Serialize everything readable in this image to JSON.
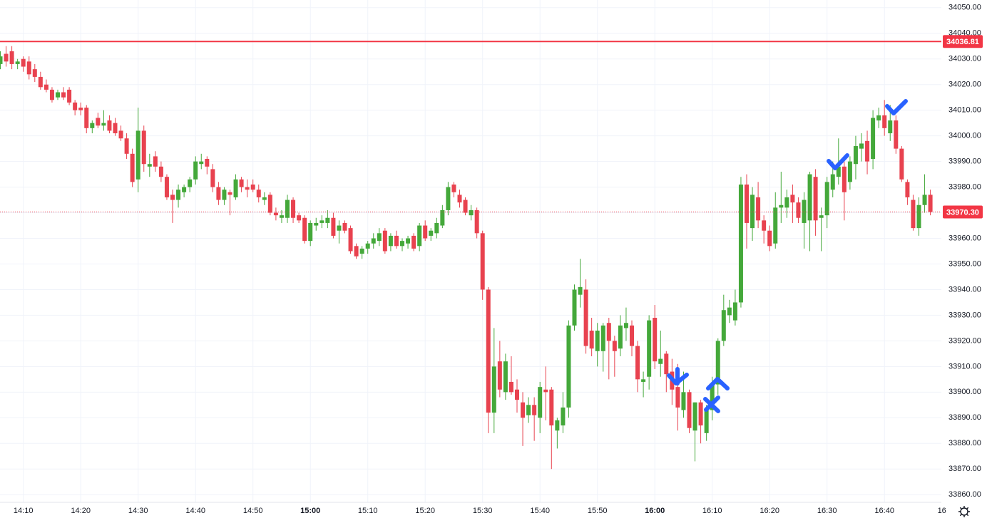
{
  "chart_data": {
    "type": "candlestick",
    "up_color": "#44a83a",
    "down_color": "#e8424f",
    "grid": true,
    "x": [
      "14:06",
      "14:07",
      "14:08",
      "14:09",
      "14:10",
      "14:11",
      "14:12",
      "14:13",
      "14:14",
      "14:15",
      "14:16",
      "14:17",
      "14:18",
      "14:19",
      "14:20",
      "14:21",
      "14:22",
      "14:23",
      "14:24",
      "14:25",
      "14:26",
      "14:27",
      "14:28",
      "14:29",
      "14:30",
      "14:31",
      "14:32",
      "14:33",
      "14:34",
      "14:35",
      "14:36",
      "14:37",
      "14:38",
      "14:39",
      "14:40",
      "14:41",
      "14:42",
      "14:43",
      "14:44",
      "14:45",
      "14:46",
      "14:47",
      "14:48",
      "14:49",
      "14:50",
      "14:51",
      "14:52",
      "14:53",
      "14:54",
      "14:55",
      "14:56",
      "14:57",
      "14:58",
      "14:59",
      "15:00",
      "15:01",
      "15:02",
      "15:03",
      "15:04",
      "15:05",
      "15:06",
      "15:07",
      "15:08",
      "15:09",
      "15:10",
      "15:11",
      "15:12",
      "15:13",
      "15:14",
      "15:15",
      "15:16",
      "15:17",
      "15:18",
      "15:19",
      "15:20",
      "15:21",
      "15:22",
      "15:23",
      "15:24",
      "15:25",
      "15:26",
      "15:27",
      "15:28",
      "15:29",
      "15:30",
      "15:31",
      "15:32",
      "15:33",
      "15:34",
      "15:35",
      "15:36",
      "15:37",
      "15:38",
      "15:39",
      "15:40",
      "15:41",
      "15:42",
      "15:43",
      "15:44",
      "15:45",
      "15:46",
      "15:47",
      "15:48",
      "15:49",
      "15:50",
      "15:51",
      "15:52",
      "15:53",
      "15:54",
      "15:55",
      "15:56",
      "15:57",
      "15:58",
      "15:59",
      "16:00",
      "16:01",
      "16:02",
      "16:03",
      "16:04",
      "16:05",
      "16:06",
      "16:07",
      "16:08",
      "16:09",
      "16:10",
      "16:11",
      "16:12",
      "16:13",
      "16:14",
      "16:15",
      "16:16",
      "16:17",
      "16:18",
      "16:19",
      "16:20",
      "16:21",
      "16:22",
      "16:23",
      "16:24",
      "16:25",
      "16:26",
      "16:27",
      "16:28",
      "16:29",
      "16:30",
      "16:31",
      "16:32",
      "16:33",
      "16:34",
      "16:35",
      "16:36",
      "16:37",
      "16:38",
      "16:39",
      "16:40",
      "16:41",
      "16:42",
      "16:43",
      "16:44",
      "16:45",
      "16:46",
      "16:47",
      "16:48"
    ],
    "open": [
      34028,
      34032,
      34033,
      34028,
      34030,
      34029,
      34026,
      34023,
      34020,
      34018,
      34015,
      34017,
      34018,
      34013,
      34011,
      34011,
      34003,
      34007,
      34004,
      34006,
      34005,
      34002,
      33999,
      33993,
      33983,
      34002,
      33988,
      33992,
      33988,
      33984,
      33977,
      33975,
      33978,
      33980,
      33983,
      33989,
      33991,
      33987,
      33980,
      33975,
      33978,
      33976,
      33983,
      33980,
      33981,
      33979,
      33975,
      33977,
      33970,
      33968,
      33968,
      33975,
      33969,
      33968,
      33959,
      33965,
      33966,
      33966,
      33968,
      33963,
      33966,
      33964,
      33957,
      33954,
      33956,
      33958,
      33959,
      33963,
      33957,
      33961,
      33957,
      33958,
      33961,
      33957,
      33965,
      33961,
      33962,
      33965,
      33971,
      33981,
      33977,
      33975,
      33969,
      33971,
      33962,
      33940,
      33892,
      33912,
      33900,
      33904,
      33901,
      33896,
      33891,
      33895,
      33890,
      33901,
      33901,
      33885,
      33887,
      33894,
      33926,
      33938,
      33940,
      33924,
      33916,
      33916,
      33927,
      33920,
      33917,
      33925,
      33926,
      33918,
      33904,
      33906,
      33929,
      33911,
      33915,
      33908,
      33902,
      33893,
      33900,
      33885,
      33896,
      33884,
      33893,
      33903,
      33920,
      33930,
      33928,
      33935,
      33981,
      33964,
      33976,
      33967,
      33963,
      33958,
      33972,
      33972,
      33977,
      33974,
      33966,
      33967,
      33984,
      33968,
      33969,
      33979,
      33984,
      33988,
      33982,
      33989,
      33995,
      33998,
      33991,
      34006,
      34008,
      34001,
      34006,
      33995,
      33982,
      33975,
      33964,
      33973,
      33977
    ],
    "high": [
      34033,
      34035,
      34035,
      34030,
      34031,
      34031,
      34028,
      34025,
      34022,
      34019,
      34018,
      34019,
      34019,
      34014,
      34013,
      34012,
      34006,
      34009,
      34010,
      34008,
      34007,
      34004,
      34001,
      33995,
      34011,
      34004,
      33993,
      33994,
      33990,
      33985,
      33979,
      33981,
      33981,
      33984,
      33992,
      33993,
      33992,
      33989,
      33982,
      33980,
      33979,
      33985,
      33984,
      33983,
      33983,
      33981,
      33978,
      33978,
      33972,
      33971,
      33977,
      33976,
      33970,
      33969,
      33967,
      33968,
      33969,
      33971,
      33970,
      33967,
      33967,
      33965,
      33958,
      33957,
      33959,
      33962,
      33964,
      33964,
      33962,
      33963,
      33960,
      33961,
      33962,
      33966,
      33967,
      33964,
      33968,
      33973,
      33982,
      33982,
      33979,
      33976,
      33973,
      33972,
      33963,
      33941,
      33925,
      33920,
      33915,
      33914,
      33905,
      33900,
      33898,
      33898,
      33904,
      33910,
      33902,
      33890,
      33900,
      33928,
      33942,
      33952,
      33944,
      33929,
      33927,
      33927,
      33929,
      33922,
      33930,
      33933,
      33928,
      33920,
      33908,
      33930,
      33934,
      33924,
      33916,
      33913,
      33911,
      33908,
      33901,
      33896,
      33897,
      33895,
      33906,
      33921,
      33938,
      33936,
      33940,
      33984,
      33985,
      33980,
      33982,
      33969,
      33965,
      33978,
      33986,
      33979,
      33981,
      33976,
      33978,
      33986,
      33987,
      33972,
      33984,
      33990,
      33999,
      33990,
      33992,
      34000,
      34001,
      34002,
      34010,
      34011,
      34014,
      34012,
      34008,
      33996,
      33983,
      33977,
      33976,
      33985,
      33979
    ],
    "low": [
      34026,
      34027,
      34026,
      34026,
      34025,
      34022,
      34021,
      34018,
      34017,
      34013,
      34014,
      34014,
      34012,
      34008,
      34008,
      34001,
      34001,
      34003,
      34002,
      34001,
      34000,
      33998,
      33991,
      33980,
      33978,
      33986,
      33984,
      33986,
      33982,
      33975,
      33966,
      33972,
      33976,
      33978,
      33981,
      33987,
      33985,
      33978,
      33973,
      33973,
      33969,
      33975,
      33978,
      33976,
      33978,
      33974,
      33973,
      33969,
      33967,
      33966,
      33966,
      33966,
      33966,
      33958,
      33957,
      33963,
      33964,
      33964,
      33960,
      33958,
      33962,
      33954,
      33952,
      33952,
      33954,
      33956,
      33957,
      33954,
      33955,
      33956,
      33955,
      33956,
      33955,
      33955,
      33959,
      33959,
      33960,
      33964,
      33969,
      33976,
      33972,
      33969,
      33967,
      33960,
      33936,
      33884,
      33884,
      33898,
      33897,
      33899,
      33892,
      33879,
      33888,
      33881,
      33884,
      33889,
      33870,
      33878,
      33884,
      33890,
      33924,
      33933,
      33915,
      33914,
      33910,
      33908,
      33905,
      33906,
      33914,
      33920,
      33914,
      33900,
      33898,
      33901,
      33909,
      33906,
      33900,
      33895,
      33885,
      33890,
      33884,
      33873,
      33880,
      33881,
      33889,
      33899,
      33918,
      33927,
      33926,
      33933,
      33956,
      33959,
      33964,
      33958,
      33955,
      33956,
      33966,
      33968,
      33966,
      33966,
      33956,
      33955,
      33961,
      33955,
      33964,
      33976,
      33981,
      33967,
      33979,
      33983,
      33990,
      33985,
      33987,
      34003,
      34000,
      33998,
      33993,
      33982,
      33973,
      33963,
      33961,
      33970,
      33969
    ],
    "close": [
      34031,
      34029,
      34028,
      34029,
      34027,
      34024,
      34023,
      34019,
      34018,
      34014,
      34017,
      34015,
      34013,
      34010,
      34010,
      34003,
      34005,
      34004,
      34005,
      34002,
      34001,
      33999,
      33993,
      33982,
      34002,
      33989,
      33989,
      33988,
      33984,
      33976,
      33975,
      33979,
      33980,
      33983,
      33990,
      33990,
      33988,
      33980,
      33975,
      33979,
      33977,
      33983,
      33980,
      33979,
      33979,
      33976,
      33976,
      33970,
      33969,
      33969,
      33975,
      33968,
      33967,
      33959,
      33966,
      33966,
      33967,
      33968,
      33961,
      33965,
      33963,
      33955,
      33953,
      33956,
      33958,
      33960,
      33962,
      33955,
      33961,
      33957,
      33959,
      33960,
      33956,
      33965,
      33960,
      33963,
      33966,
      33971,
      33980,
      33978,
      33974,
      33970,
      33971,
      33962,
      33940,
      33892,
      33910,
      33901,
      33912,
      33900,
      33897,
      33890,
      33895,
      33891,
      33902,
      33900,
      33887,
      33889,
      33894,
      33926,
      33940,
      33941,
      33918,
      33917,
      33924,
      33926,
      33920,
      33916,
      33926,
      33927,
      33918,
      33905,
      33905,
      33928,
      33912,
      33913,
      33907,
      33901,
      33894,
      33900,
      33886,
      33896,
      33887,
      33893,
      33903,
      33920,
      33932,
      33933,
      33935,
      33981,
      33966,
      33977,
      33967,
      33963,
      33957,
      33972,
      33973,
      33976,
      33974,
      33968,
      33975,
      33985,
      33967,
      33969,
      33982,
      33985,
      33988,
      33978,
      33990,
      33996,
      33997,
      33990,
      34007,
      34008,
      34003,
      34006,
      33995,
      33983,
      33976,
      33964,
      33973,
      33977,
      33970.3
    ],
    "xticks": [
      "14:10",
      "14:20",
      "14:30",
      "14:40",
      "14:50",
      "15:00",
      "15:10",
      "15:20",
      "15:30",
      "15:40",
      "15:50",
      "16:00",
      "16:10",
      "16:20",
      "16:30",
      "16:40",
      {
        "value": "16:50",
        "label": "16"
      }
    ],
    "ylim": [
      33857,
      34053
    ],
    "yticks": [
      {
        "value": 33860,
        "label": "33860.00"
      },
      {
        "value": 33870,
        "label": "33870.00"
      },
      {
        "value": 33880,
        "label": "33880.00"
      },
      {
        "value": 33890,
        "label": "33890.00"
      },
      {
        "value": 33900,
        "label": "33900.00"
      },
      {
        "value": 33910,
        "label": "33910.00"
      },
      {
        "value": 33920,
        "label": "33920.00"
      },
      {
        "value": 33930,
        "label": "33930.00"
      },
      {
        "value": 33940,
        "label": "33940.00"
      },
      {
        "value": 33950,
        "label": "33950.00"
      },
      {
        "value": 33960,
        "label": "33960.00"
      },
      {
        "value": 33970,
        "label": "33970.00"
      },
      {
        "value": 33980,
        "label": "33980.00"
      },
      {
        "value": 33990,
        "label": "33990.00"
      },
      {
        "value": 34000,
        "label": "34000.00"
      },
      {
        "value": 34010,
        "label": "34010.00"
      },
      {
        "value": 34020,
        "label": "34020.00"
      },
      {
        "value": 34030,
        "label": "34030.00"
      },
      {
        "value": 34040,
        "label": "34040.00"
      },
      {
        "value": 34050,
        "label": "34050.00"
      }
    ],
    "price_lines": [
      {
        "value": 34036.81,
        "color": "#f23645",
        "style": "solid"
      },
      {
        "value": 33970.3,
        "label": "33970.30",
        "color": "#f23645",
        "style": "dotted"
      }
    ]
  }
}
